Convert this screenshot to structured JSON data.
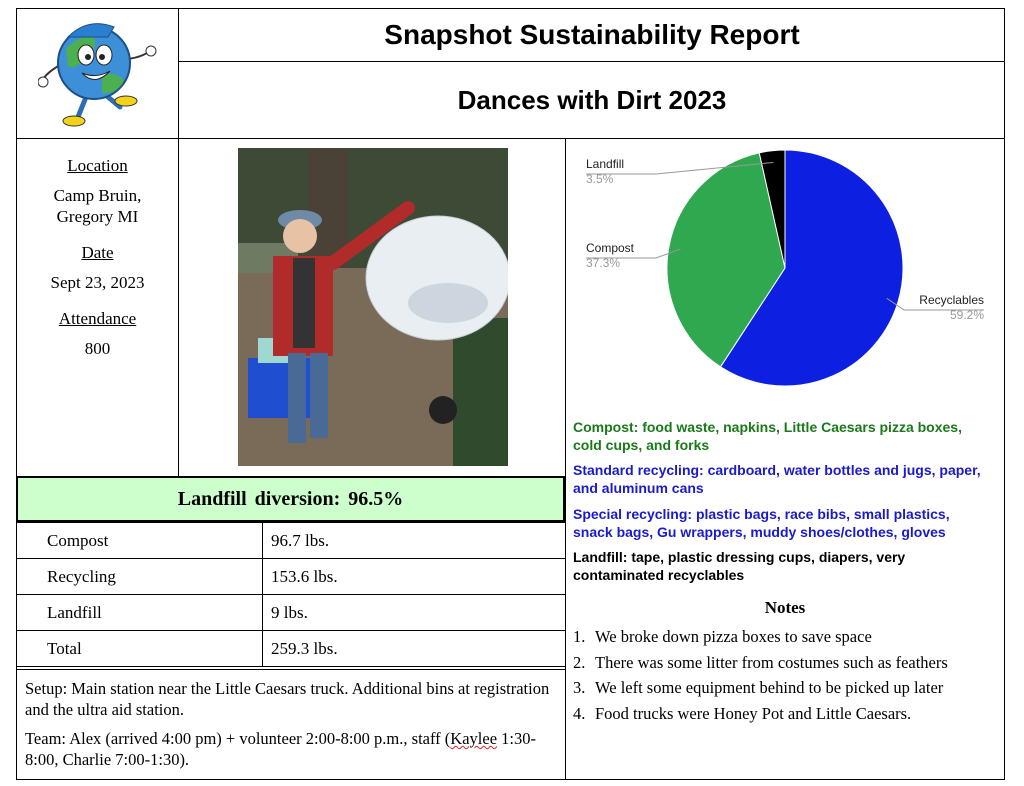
{
  "header": {
    "title": "Snapshot Sustainability Report",
    "event": "Dances with Dirt 2023"
  },
  "info": {
    "location_label": "Location",
    "location_line1": "Camp Bruin,",
    "location_line2": "Gregory MI",
    "date_label": "Date",
    "date_value": "Sept 23, 2023",
    "attendance_label": "Attendance",
    "attendance_value": "800"
  },
  "diversion": "Landfill diversion:  96.5%",
  "weights": [
    {
      "label": "Compost",
      "value": "96.7 lbs."
    },
    {
      "label": "Recycling",
      "value": "153.6 lbs."
    },
    {
      "label": "Landfill",
      "value": "9 lbs."
    },
    {
      "label": "Total",
      "value": "259.3 lbs."
    }
  ],
  "setup": "Setup: Main station near the Little Caesars truck. Additional bins at registration and the ultra aid station.",
  "team_before": "Team: Alex (arrived 4:00 pm) + volunteer 2:00-8:00 p.m., staff (",
  "team_name": "Kaylee",
  "team_after": " 1:30-8:00, Charlie 7:00-1:30).",
  "chart_data": {
    "type": "pie",
    "categories": [
      "Recyclables",
      "Compost",
      "Landfill"
    ],
    "values": [
      59.2,
      37.3,
      3.5
    ],
    "labels": [
      "59.2%",
      "37.3%",
      "3.5%"
    ],
    "colors": [
      "#0d1fe0",
      "#2fa84f",
      "#000000"
    ]
  },
  "descriptions": {
    "compost": "Compost: food waste, napkins, Little Caesars pizza boxes, cold cups, and forks",
    "standard_recycling": "Standard recycling: cardboard, water bottles and jugs, paper, and aluminum cans",
    "special_recycling": "Special recycling: plastic bags, race bibs, small plastics, snack bags, Gu wrappers, muddy shoes/clothes,  gloves",
    "landfill": "Landfill: tape, plastic dressing cups, diapers, very contaminated recyclables"
  },
  "notes_title": "Notes",
  "notes": [
    {
      "num": "1.",
      "text": "We broke down pizza boxes to save space"
    },
    {
      "num": "2.",
      "text": "There was some litter from costumes such as feathers"
    },
    {
      "num": "3.",
      "text": "We left some equipment behind to be picked up later"
    },
    {
      "num": "4.",
      "text": "Food trucks were Honey Pot and Little Caesars."
    }
  ],
  "colors": {
    "banner": "#ccffcc",
    "compost_text": "#1a7a1a",
    "recycling_text": "#1a1acc"
  }
}
